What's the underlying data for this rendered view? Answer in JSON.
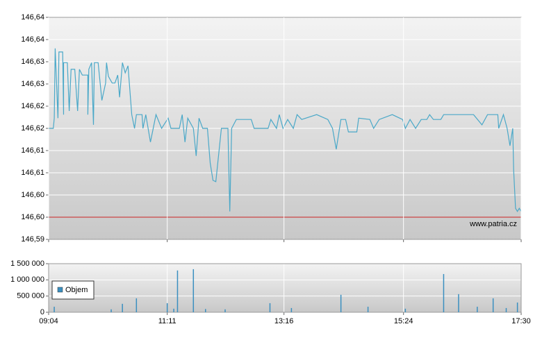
{
  "chart_data": [
    {
      "type": "line",
      "color": "#4aa8c8",
      "grid": true,
      "xlim": [
        "09:04",
        "17:30"
      ],
      "ylim": [
        146.59,
        146.64
      ],
      "yticks": [
        {
          "value": 146.59,
          "label": "146,59"
        },
        {
          "value": 146.595,
          "label": "146,60"
        },
        {
          "value": 146.6,
          "label": "146,60"
        },
        {
          "value": 146.605,
          "label": "146,61"
        },
        {
          "value": 146.61,
          "label": "146,61"
        },
        {
          "value": 146.615,
          "label": "146,62"
        },
        {
          "value": 146.62,
          "label": "146,62"
        },
        {
          "value": 146.625,
          "label": "146,63"
        },
        {
          "value": 146.63,
          "label": "146,63"
        },
        {
          "value": 146.635,
          "label": "146,64"
        },
        {
          "value": 146.64,
          "label": "146,64"
        }
      ],
      "reference_line": {
        "value": 146.595,
        "color": "#cc2222"
      },
      "annotation": "www.patria.cz",
      "x": [
        "09:04",
        "09:09",
        "09:10",
        "09:11",
        "09:14",
        "09:15",
        "09:19",
        "09:20",
        "09:20",
        "09:24",
        "09:26",
        "09:28",
        "09:32",
        "09:35",
        "09:37",
        "09:40",
        "09:46",
        "09:46",
        "09:47",
        "09:50",
        "09:52",
        "09:53",
        "09:57",
        "10:01",
        "10:05",
        "10:06",
        "10:08",
        "10:12",
        "10:15",
        "10:18",
        "10:20",
        "10:23",
        "10:26",
        "10:29",
        "10:33",
        "10:36",
        "10:38",
        "10:44",
        "10:45",
        "10:48",
        "10:53",
        "10:59",
        "11:05",
        "11:12",
        "11:15",
        "11:24",
        "11:27",
        "11:30",
        "11:33",
        "11:39",
        "11:42",
        "11:45",
        "11:49",
        "11:54",
        "11:57",
        "12:00",
        "12:03",
        "12:09",
        "12:16",
        "12:18",
        "12:20",
        "12:25",
        "12:41",
        "12:44",
        "12:59",
        "13:02",
        "13:08",
        "13:11",
        "13:15",
        "13:20",
        "13:26",
        "13:30",
        "13:35",
        "13:51",
        "14:03",
        "14:08",
        "14:12",
        "14:17",
        "14:22",
        "14:25",
        "14:34",
        "14:36",
        "14:48",
        "14:52",
        "14:58",
        "15:12",
        "15:23",
        "15:26",
        "15:31",
        "15:37",
        "15:43",
        "15:49",
        "15:52",
        "15:56",
        "16:04",
        "16:07",
        "16:39",
        "16:48",
        "16:54",
        "17:05",
        "17:06",
        "17:11",
        "17:15",
        "17:18",
        "17:21",
        "17:22",
        "17:24",
        "17:26",
        "17:28",
        "17:30"
      ],
      "values": [
        146.615,
        146.615,
        146.6173,
        146.633,
        146.6173,
        146.6322,
        146.6322,
        146.6181,
        146.6298,
        146.6298,
        146.6189,
        146.6283,
        146.6283,
        146.6189,
        146.6283,
        146.627,
        146.627,
        146.6181,
        146.6283,
        146.6298,
        146.6158,
        146.6298,
        146.6298,
        146.6213,
        146.6252,
        146.6298,
        146.6267,
        146.6252,
        146.6252,
        146.627,
        146.622,
        146.6298,
        146.6275,
        146.6291,
        146.6181,
        146.615,
        146.6181,
        146.6181,
        146.615,
        146.6181,
        146.6119,
        146.6181,
        146.615,
        146.6173,
        146.615,
        146.615,
        146.6181,
        146.6119,
        146.6173,
        146.615,
        146.6088,
        146.6173,
        146.615,
        146.615,
        146.6072,
        146.6033,
        146.603,
        146.615,
        146.615,
        146.5963,
        146.615,
        146.617,
        146.617,
        146.615,
        146.615,
        146.617,
        146.615,
        146.6181,
        146.615,
        146.617,
        146.615,
        146.6181,
        146.617,
        146.6181,
        146.617,
        146.615,
        146.6103,
        146.617,
        146.617,
        146.6142,
        146.6142,
        146.6173,
        146.617,
        146.615,
        146.617,
        146.6181,
        146.617,
        146.615,
        146.617,
        146.615,
        146.617,
        146.617,
        146.6181,
        146.617,
        146.617,
        146.6181,
        146.6181,
        146.6158,
        146.6181,
        146.6181,
        146.615,
        146.6181,
        146.615,
        146.6111,
        146.615,
        146.6056,
        146.597,
        146.5963,
        146.597,
        146.5963
      ]
    },
    {
      "type": "bar",
      "grid": true,
      "legend": "lower left",
      "xlim": [
        "09:04",
        "17:30"
      ],
      "xticks": [
        "09:04",
        "11:11",
        "13:16",
        "15:24",
        "17:30"
      ],
      "ylim": [
        0,
        1500000
      ],
      "yticks": [
        0,
        {
          "value": 500000,
          "label": "500 000"
        },
        {
          "value": 1000000,
          "label": "1 000 000"
        },
        {
          "value": 1500000,
          "label": "1 500 000"
        }
      ],
      "x": [
        "09:10",
        "10:11",
        "10:23",
        "10:38",
        "11:11",
        "11:18",
        "11:22",
        "11:39",
        "11:52",
        "12:13",
        "13:01",
        "13:24",
        "14:17",
        "14:46",
        "15:26",
        "16:07",
        "16:23",
        "16:43",
        "17:00",
        "17:14",
        "17:26"
      ],
      "series": [
        {
          "name": "Objem",
          "color": "#3a8fc0",
          "values": [
            170000,
            90000,
            260000,
            430000,
            280000,
            110000,
            1290000,
            1330000,
            100000,
            90000,
            280000,
            130000,
            540000,
            170000,
            110000,
            1180000,
            560000,
            170000,
            430000,
            130000,
            300000
          ]
        }
      ]
    }
  ]
}
